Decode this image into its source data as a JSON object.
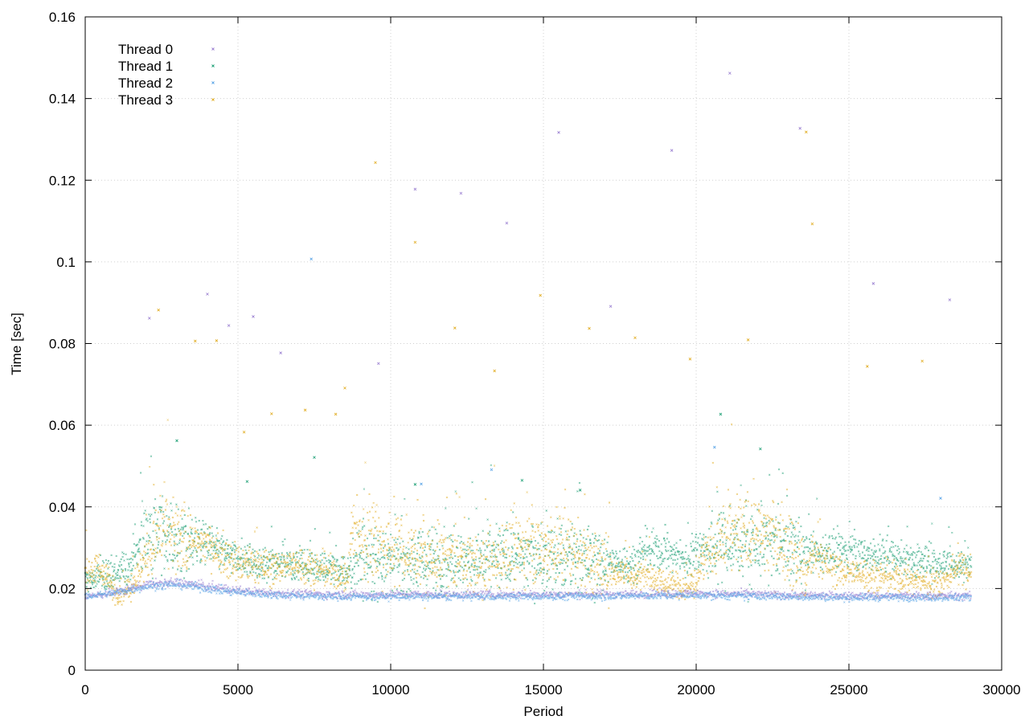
{
  "chart_data": {
    "type": "scatter",
    "title": "",
    "xlabel": "Period",
    "ylabel": "Time [sec]",
    "xlim": [
      0,
      30000
    ],
    "ylim": [
      0,
      0.16
    ],
    "xticks": [
      0,
      5000,
      10000,
      15000,
      20000,
      25000,
      30000
    ],
    "yticks": [
      0,
      0.02,
      0.04,
      0.06,
      0.08,
      0.1,
      0.12,
      0.14,
      0.16
    ],
    "xtick_labels": [
      "0",
      "5000",
      "10000",
      "15000",
      "20000",
      "25000",
      "30000"
    ],
    "ytick_labels": [
      "0",
      "0.02",
      "0.04",
      "0.06",
      "0.08",
      "0.1",
      "0.12",
      "0.14",
      "0.16"
    ],
    "grid": true,
    "legend_position": "top-left",
    "marker": "x",
    "series": [
      {
        "name": "Thread 0",
        "color": "#9a7fd1",
        "baseline": [
          [
            0,
            0.018
          ],
          [
            1000,
            0.019
          ],
          [
            2000,
            0.021
          ],
          [
            3000,
            0.0215
          ],
          [
            4000,
            0.0205
          ],
          [
            5000,
            0.0195
          ],
          [
            6000,
            0.019
          ],
          [
            8000,
            0.0185
          ],
          [
            10000,
            0.0185
          ],
          [
            15000,
            0.0185
          ],
          [
            20000,
            0.0188
          ],
          [
            25000,
            0.0182
          ],
          [
            29000,
            0.0182
          ]
        ],
        "outliers": [
          [
            2100,
            0.0862
          ],
          [
            4000,
            0.0921
          ],
          [
            4700,
            0.0844
          ],
          [
            5500,
            0.0866
          ],
          [
            6400,
            0.0777
          ],
          [
            9600,
            0.0751
          ],
          [
            10800,
            0.1178
          ],
          [
            12300,
            0.1168
          ],
          [
            13800,
            0.1095
          ],
          [
            15500,
            0.1317
          ],
          [
            17200,
            0.0891
          ],
          [
            19200,
            0.1273
          ],
          [
            21100,
            0.1462
          ],
          [
            23400,
            0.1327
          ],
          [
            25800,
            0.0947
          ],
          [
            28300,
            0.0907
          ]
        ]
      },
      {
        "name": "Thread 1",
        "color": "#1a9e73",
        "baseline": [
          [
            0,
            0.022
          ],
          [
            1000,
            0.023
          ],
          [
            1500,
            0.026
          ],
          [
            2000,
            0.034
          ],
          [
            3000,
            0.032
          ],
          [
            4000,
            0.031
          ],
          [
            5000,
            0.027
          ],
          [
            6000,
            0.026
          ],
          [
            7000,
            0.026
          ],
          [
            8000,
            0.025
          ],
          [
            8600,
            0.024
          ],
          [
            9000,
            0.028
          ],
          [
            10000,
            0.027
          ],
          [
            12000,
            0.027
          ],
          [
            14000,
            0.028
          ],
          [
            16000,
            0.027
          ],
          [
            18000,
            0.026
          ],
          [
            18200,
            0.029
          ],
          [
            19000,
            0.029
          ],
          [
            19600,
            0.027
          ],
          [
            20000,
            0.029
          ],
          [
            22000,
            0.031
          ],
          [
            23500,
            0.03
          ],
          [
            23700,
            0.029
          ],
          [
            25000,
            0.029
          ],
          [
            27000,
            0.027
          ],
          [
            28500,
            0.026
          ],
          [
            29000,
            0.026
          ]
        ],
        "outliers": [
          [
            3000,
            0.0562
          ],
          [
            5300,
            0.0462
          ],
          [
            7500,
            0.0521
          ],
          [
            10800,
            0.0455
          ],
          [
            14300,
            0.0465
          ],
          [
            16200,
            0.0441
          ],
          [
            20800,
            0.0627
          ],
          [
            22100,
            0.0542
          ]
        ]
      },
      {
        "name": "Thread 2",
        "color": "#5aa4e6",
        "baseline": [
          [
            0,
            0.018
          ],
          [
            1000,
            0.019
          ],
          [
            2000,
            0.0205
          ],
          [
            3000,
            0.021
          ],
          [
            4000,
            0.02
          ],
          [
            5000,
            0.019
          ],
          [
            6000,
            0.0185
          ],
          [
            8000,
            0.018
          ],
          [
            10000,
            0.018
          ],
          [
            15000,
            0.018
          ],
          [
            20000,
            0.0183
          ],
          [
            25000,
            0.0178
          ],
          [
            29000,
            0.0178
          ]
        ],
        "outliers": [
          [
            7400,
            0.1007
          ],
          [
            11000,
            0.0456
          ],
          [
            13300,
            0.0491
          ],
          [
            20600,
            0.0546
          ],
          [
            28000,
            0.0421
          ]
        ]
      },
      {
        "name": "Thread 3",
        "color": "#e1ac21",
        "baseline": [
          [
            0,
            0.024
          ],
          [
            500,
            0.025
          ],
          [
            1000,
            0.019
          ],
          [
            1500,
            0.02
          ],
          [
            2000,
            0.028
          ],
          [
            2500,
            0.035
          ],
          [
            3000,
            0.032
          ],
          [
            4000,
            0.031
          ],
          [
            4500,
            0.028
          ],
          [
            5000,
            0.026
          ],
          [
            6000,
            0.025
          ],
          [
            7000,
            0.026
          ],
          [
            8000,
            0.024
          ],
          [
            8600,
            0.022
          ],
          [
            8700,
            0.033
          ],
          [
            9500,
            0.032
          ],
          [
            10000,
            0.029
          ],
          [
            11000,
            0.028
          ],
          [
            12000,
            0.027
          ],
          [
            13000,
            0.026
          ],
          [
            14000,
            0.029
          ],
          [
            15000,
            0.03
          ],
          [
            16000,
            0.029
          ],
          [
            17000,
            0.025
          ],
          [
            18000,
            0.023
          ],
          [
            18200,
            0.024
          ],
          [
            19000,
            0.021
          ],
          [
            20000,
            0.021
          ],
          [
            20200,
            0.028
          ],
          [
            21000,
            0.033
          ],
          [
            22000,
            0.034
          ],
          [
            23000,
            0.031
          ],
          [
            23600,
            0.023
          ],
          [
            23800,
            0.028
          ],
          [
            24500,
            0.025
          ],
          [
            25000,
            0.024
          ],
          [
            26000,
            0.023
          ],
          [
            27000,
            0.022
          ],
          [
            28000,
            0.021
          ],
          [
            28500,
            0.025
          ],
          [
            29000,
            0.024
          ]
        ],
        "outliers": [
          [
            2400,
            0.0882
          ],
          [
            3600,
            0.0806
          ],
          [
            4300,
            0.0807
          ],
          [
            6100,
            0.0628
          ],
          [
            7200,
            0.0637
          ],
          [
            8200,
            0.0627
          ],
          [
            9500,
            0.1243
          ],
          [
            10800,
            0.1048
          ],
          [
            12100,
            0.0838
          ],
          [
            13400,
            0.0733
          ],
          [
            14900,
            0.0918
          ],
          [
            16500,
            0.0837
          ],
          [
            18000,
            0.0814
          ],
          [
            19800,
            0.0762
          ],
          [
            21700,
            0.0809
          ],
          [
            23600,
            0.1318
          ],
          [
            23800,
            0.1093
          ],
          [
            25600,
            0.0744
          ],
          [
            27400,
            0.0757
          ],
          [
            5200,
            0.0583
          ],
          [
            8500,
            0.0691
          ]
        ]
      }
    ]
  }
}
